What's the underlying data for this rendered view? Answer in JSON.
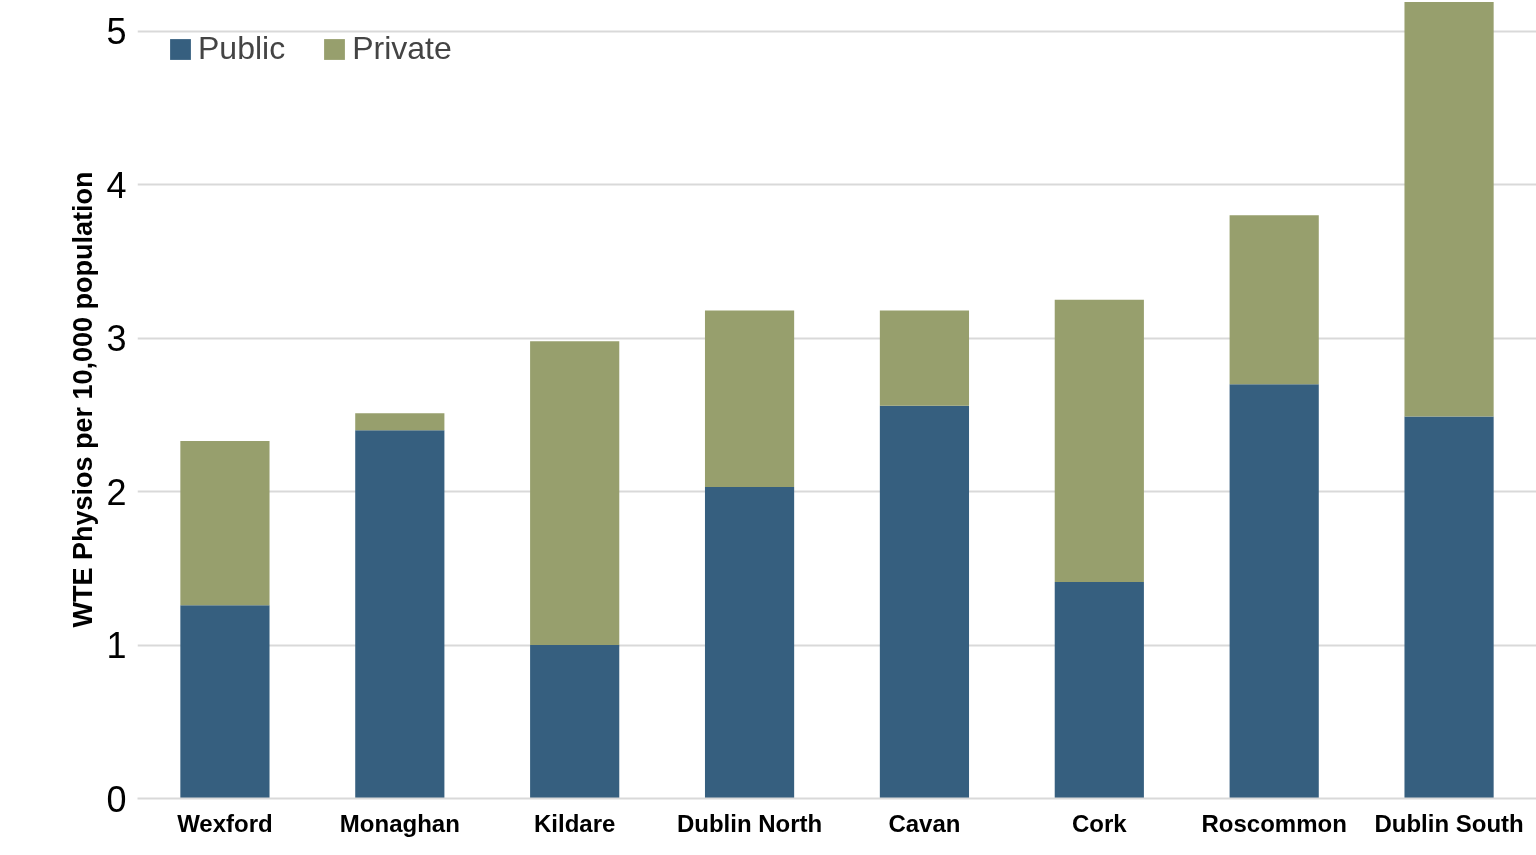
{
  "chart_data": {
    "type": "bar",
    "stacked": true,
    "ylabel": "WTE Physios per 10,000 population",
    "categories": [
      "Wexford",
      "Monaghan",
      "Kildare",
      "Dublin North",
      "Cavan",
      "Cork",
      "Roscommon",
      "Dublin South"
    ],
    "series": [
      {
        "name": "Public",
        "color": "#365f7f",
        "values": [
          1.26,
          2.4,
          1.0,
          2.03,
          2.56,
          1.41,
          2.7,
          2.49
        ]
      },
      {
        "name": "Private",
        "color": "#979f6d",
        "values": [
          1.07,
          0.11,
          1.98,
          1.15,
          0.62,
          1.84,
          1.1,
          2.7
        ]
      }
    ],
    "ylim": [
      0,
      5.2
    ],
    "yticks": [
      0,
      1,
      2,
      3,
      4,
      5
    ],
    "grid": "y",
    "legend": "top left"
  }
}
